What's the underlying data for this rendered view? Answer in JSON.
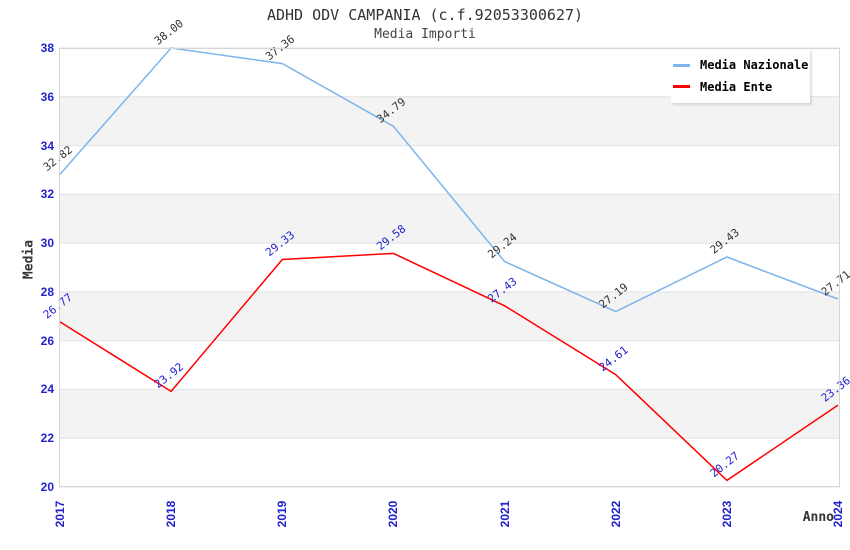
{
  "chart_data": {
    "type": "line",
    "title": "ADHD ODV CAMPANIA (c.f.92053300627)",
    "subtitle": "Media Importi",
    "xlabel": "Anno",
    "ylabel": "Media",
    "categories": [
      "2017",
      "2018",
      "2019",
      "2020",
      "2021",
      "2022",
      "2023",
      "2024"
    ],
    "series": [
      {
        "name": "Media Nazionale",
        "color": "#7cb5ec",
        "label_color": "#333333",
        "values": [
          32.82,
          38.0,
          37.36,
          34.79,
          29.24,
          27.19,
          29.43,
          27.71
        ]
      },
      {
        "name": "Media Ente",
        "color": "#ff0000",
        "label_color": "#2222cc",
        "values": [
          26.77,
          23.92,
          29.33,
          29.58,
          27.43,
          24.61,
          20.27,
          23.36
        ]
      }
    ],
    "ylim": [
      20,
      38
    ],
    "yticks": [
      20,
      22,
      24,
      26,
      28,
      30,
      32,
      34,
      36,
      38
    ],
    "grid": true,
    "band_color": "#f3f3f3",
    "gridline_color": "#e2e2e2",
    "plot_border_color": "#d5d5d5",
    "axis_tick_color": "#2222cc",
    "legend_position": "top-right",
    "point_label_decimals": 2
  }
}
